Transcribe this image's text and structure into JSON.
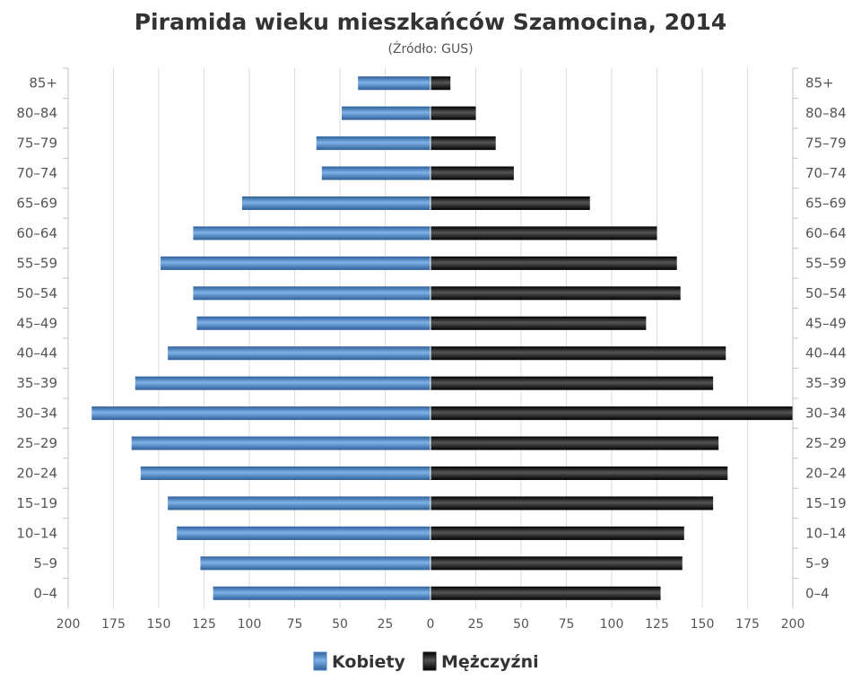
{
  "chart_data": {
    "type": "bar",
    "orientation": "horizontal",
    "layout": "population-pyramid",
    "title": "Piramida wieku mieszkańców Szamocina, 2014",
    "subtitle": "(Źródło: GUS)",
    "categories": [
      "85+",
      "80–84",
      "75–79",
      "70–74",
      "65–69",
      "60–64",
      "55–59",
      "50–54",
      "45–49",
      "40–44",
      "35–39",
      "30–34",
      "25–29",
      "20–24",
      "15–19",
      "10–14",
      "5–9",
      "0–4"
    ],
    "series": [
      {
        "name": "Kobiety",
        "color": "#4a86c8",
        "side": "left",
        "values": [
          40,
          49,
          63,
          60,
          104,
          131,
          149,
          131,
          129,
          145,
          163,
          187,
          165,
          160,
          145,
          140,
          127,
          120
        ]
      },
      {
        "name": "Mężczyźni",
        "color": "#1a1a1a",
        "side": "right",
        "values": [
          11,
          25,
          36,
          46,
          88,
          125,
          136,
          138,
          119,
          163,
          156,
          200,
          159,
          164,
          156,
          140,
          139,
          127
        ]
      }
    ],
    "xlim": [
      -200,
      200
    ],
    "xticks": [
      "200",
      "175",
      "150",
      "125",
      "100",
      "75",
      "50",
      "25",
      "0",
      "25",
      "50",
      "75",
      "100",
      "125",
      "150",
      "175",
      "200"
    ],
    "grid": true,
    "legend": "bottom-center"
  }
}
